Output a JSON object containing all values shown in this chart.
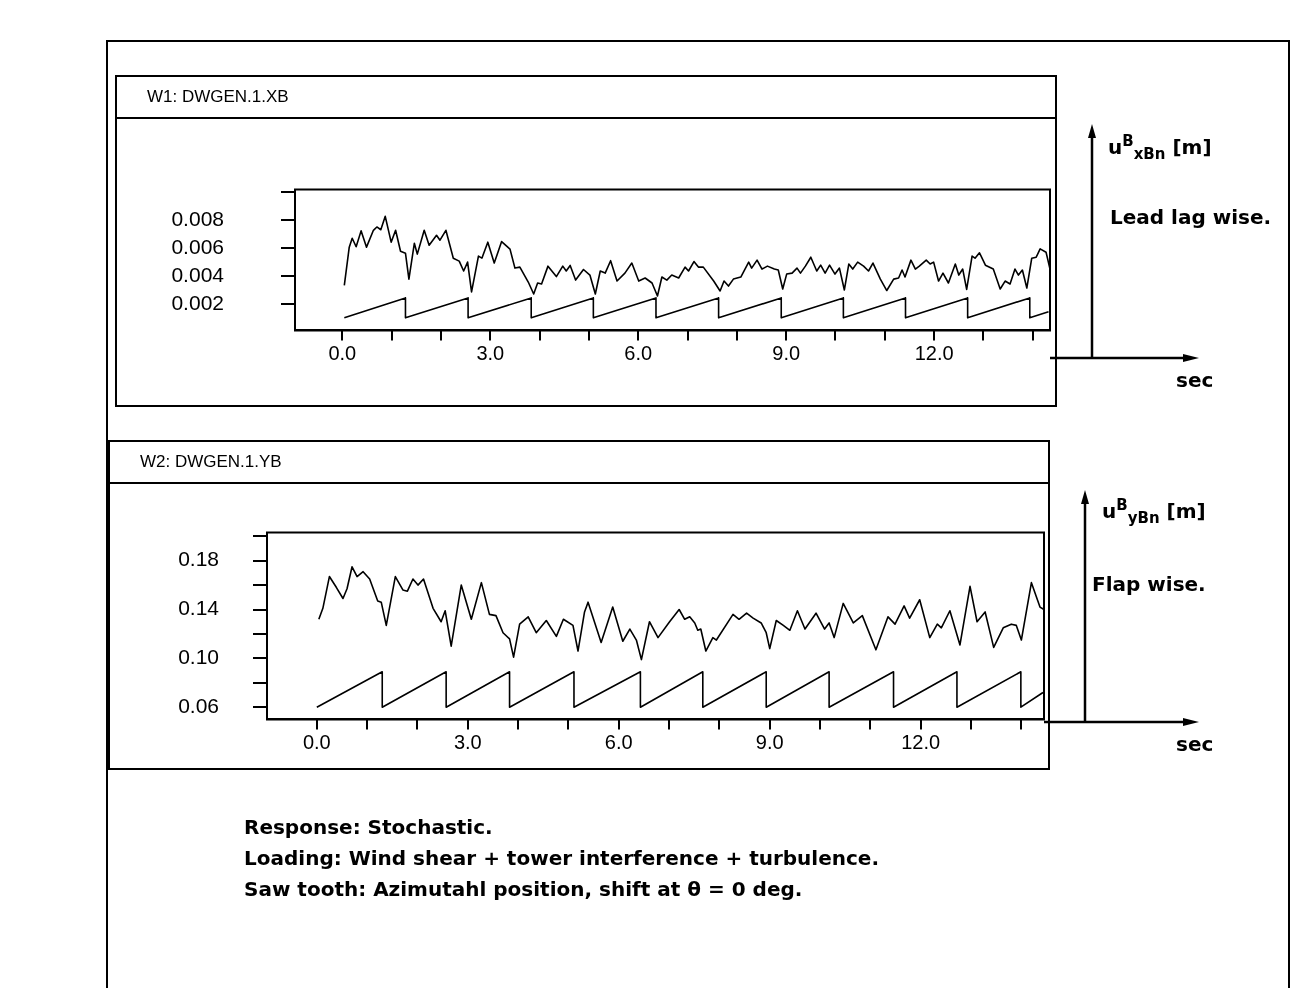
{
  "chart_data": [
    {
      "type": "line",
      "title": "W1: DWGEN.1.XB",
      "ylabel": "u$^{B}$$_{xBn}$ [m]",
      "annotations": [
        "Lead lag wise.",
        "sec"
      ],
      "xlim": [
        -0.96,
        14.35
      ],
      "xticks": [
        {
          "value": 0,
          "label": "0.0"
        },
        {
          "value": 1,
          "label": null
        },
        {
          "value": 2,
          "label": null
        },
        {
          "value": 3,
          "label": "3.0"
        },
        {
          "value": 4,
          "label": null
        },
        {
          "value": 5,
          "label": null
        },
        {
          "value": 6,
          "label": "6.0"
        },
        {
          "value": 7,
          "label": null
        },
        {
          "value": 8,
          "label": null
        },
        {
          "value": 9,
          "label": "9.0"
        },
        {
          "value": 10,
          "label": null
        },
        {
          "value": 11,
          "label": null
        },
        {
          "value": 12,
          "label": "12.0"
        },
        {
          "value": 13,
          "label": null
        },
        {
          "value": 14,
          "label": null
        }
      ],
      "ylim": [
        0.0001,
        0.0102
      ],
      "yticks": [
        0.002,
        0.004,
        0.006,
        0.008,
        {
          "value": 0.01,
          "label": null
        }
      ],
      "grid": false,
      "legend": false,
      "series": [
        {
          "color": "#000000",
          "x": [
            0.04,
            0.14,
            0.2,
            0.28,
            0.38,
            0.49,
            0.63,
            0.7,
            0.78,
            0.87,
            0.99,
            1.08,
            1.18,
            1.28,
            1.35,
            1.46,
            1.52,
            1.66,
            1.76,
            1.91,
            1.98,
            2.1,
            2.25,
            2.37,
            2.46,
            2.54,
            2.62,
            2.76,
            2.83,
            2.95,
            3.08,
            3.23,
            3.4,
            3.5,
            3.6,
            3.77,
            3.88,
            3.96,
            4.04,
            4.17,
            4.34,
            4.47,
            4.54,
            4.62,
            4.73,
            4.89,
            5.02,
            5.13,
            5.23,
            5.33,
            5.44,
            5.57,
            5.73,
            5.87,
            6.01,
            6.14,
            6.28,
            6.39,
            6.48,
            6.58,
            6.68,
            6.82,
            6.95,
            7.02,
            7.13,
            7.22,
            7.32,
            7.53,
            7.66,
            7.74,
            7.83,
            7.93,
            8.08,
            8.24,
            8.3,
            8.41,
            8.51,
            8.62,
            8.76,
            8.84,
            8.93,
            9.01,
            9.12,
            9.22,
            9.29,
            9.39,
            9.5,
            9.62,
            9.7,
            9.79,
            9.88,
            9.99,
            10.08,
            10.18,
            10.27,
            10.35,
            10.45,
            10.57,
            10.67,
            10.76,
            10.91,
            11.04,
            11.18,
            11.28,
            11.35,
            11.41,
            11.53,
            11.62,
            11.7,
            11.84,
            11.92,
            11.99,
            12.09,
            12.18,
            12.29,
            12.43,
            12.5,
            12.58,
            12.66,
            12.77,
            12.83,
            12.92,
            13.04,
            13.2,
            13.34,
            13.44,
            13.54,
            13.64,
            13.71,
            13.79,
            13.88,
            13.98,
            14.07,
            14.15,
            14.27,
            14.35
          ],
          "values": [
            0.00333,
            0.00607,
            0.00671,
            0.0061,
            0.00724,
            0.00607,
            0.00728,
            0.00752,
            0.00732,
            0.00828,
            0.00643,
            0.00728,
            0.00578,
            0.00564,
            0.00378,
            0.00635,
            0.00557,
            0.00728,
            0.00621,
            0.00692,
            0.00657,
            0.00728,
            0.00528,
            0.00507,
            0.00436,
            0.005,
            0.00286,
            0.00543,
            0.00528,
            0.00643,
            0.00493,
            0.00647,
            0.00593,
            0.00457,
            0.00464,
            0.00357,
            0.00271,
            0.0035,
            0.00343,
            0.00471,
            0.00396,
            0.00471,
            0.00436,
            0.00476,
            0.00371,
            0.00447,
            0.00407,
            0.00271,
            0.00436,
            0.00421,
            0.0051,
            0.00364,
            0.00421,
            0.00493,
            0.00364,
            0.00386,
            0.0035,
            0.00257,
            0.00393,
            0.00371,
            0.00407,
            0.00386,
            0.00464,
            0.00436,
            0.00504,
            0.00464,
            0.00464,
            0.00364,
            0.00293,
            0.00364,
            0.00328,
            0.00378,
            0.00393,
            0.005,
            0.00457,
            0.00514,
            0.0045,
            0.00471,
            0.0045,
            0.00443,
            0.00307,
            0.00414,
            0.00421,
            0.00457,
            0.00421,
            0.00471,
            0.00535,
            0.00436,
            0.00478,
            0.00421,
            0.00478,
            0.00414,
            0.00457,
            0.003,
            0.00486,
            0.0045,
            0.005,
            0.00471,
            0.00436,
            0.00493,
            0.00378,
            0.00296,
            0.00378,
            0.00386,
            0.00443,
            0.00393,
            0.00514,
            0.0045,
            0.00471,
            0.00514,
            0.00486,
            0.005,
            0.00364,
            0.00421,
            0.0035,
            0.00486,
            0.00407,
            0.0045,
            0.00304,
            0.00543,
            0.00528,
            0.00567,
            0.00478,
            0.0045,
            0.00307,
            0.00364,
            0.00343,
            0.0045,
            0.00407,
            0.00443,
            0.00314,
            0.00528,
            0.00535,
            0.00595,
            0.00571,
            0.0045
          ]
        },
        {
          "color": "#000000",
          "x": [
            0.04,
            1.28,
            1.28,
            2.55,
            2.55,
            3.83,
            3.83,
            5.09,
            5.09,
            6.36,
            6.36,
            7.63,
            7.63,
            8.9,
            8.9,
            10.16,
            10.16,
            11.42,
            11.42,
            12.68,
            12.68,
            13.94,
            13.94,
            14.32
          ],
          "values": [
            0.001,
            0.00243,
            0.001,
            0.00243,
            0.001,
            0.00243,
            0.001,
            0.00243,
            0.001,
            0.00243,
            0.001,
            0.00243,
            0.001,
            0.00243,
            0.001,
            0.00243,
            0.001,
            0.00243,
            0.001,
            0.00243,
            0.001,
            0.00243,
            0.001,
            0.00144
          ]
        }
      ]
    },
    {
      "type": "line",
      "title": "W2: DWGEN.1.YB",
      "ylabel": "u$^{B}$$_{yBn}$ [m]",
      "annotations": [
        "Flap wise.",
        "sec",
        "Response: Stochastic.",
        "Loading: Wind shear + tower interference + turbulence.",
        "Saw tooth: Azimutahl position, shift at θ = 0 deg."
      ],
      "xlim": [
        -0.99,
        14.45
      ],
      "xticks": [
        {
          "value": 0,
          "label": "0.0"
        },
        {
          "value": 1,
          "label": null
        },
        {
          "value": 2,
          "label": null
        },
        {
          "value": 3,
          "label": "3.0"
        },
        {
          "value": 4,
          "label": null
        },
        {
          "value": 5,
          "label": null
        },
        {
          "value": 6,
          "label": "6.0"
        },
        {
          "value": 7,
          "label": null
        },
        {
          "value": 8,
          "label": null
        },
        {
          "value": 9,
          "label": "9.0"
        },
        {
          "value": 10,
          "label": null
        },
        {
          "value": 11,
          "label": null
        },
        {
          "value": 12,
          "label": "12.0"
        },
        {
          "value": 13,
          "label": null
        },
        {
          "value": 14,
          "label": null
        }
      ],
      "ylim": [
        0.05,
        0.203
      ],
      "yticks": [
        0.06,
        {
          "value": 0.08,
          "label": null
        },
        {
          "value": 0.1,
          "label": "0.10"
        },
        {
          "value": 0.12,
          "label": null
        },
        0.14,
        {
          "value": 0.16,
          "label": null
        },
        0.18,
        {
          "value": 0.2,
          "label": null
        }
      ],
      "grid": false,
      "legend": false,
      "series": [
        {
          "color": "#000000",
          "x": [
            0.04,
            0.12,
            0.25,
            0.39,
            0.52,
            0.6,
            0.7,
            0.8,
            0.92,
            1.05,
            1.21,
            1.28,
            1.38,
            1.56,
            1.71,
            1.8,
            1.91,
            2.01,
            2.12,
            2.31,
            2.47,
            2.55,
            2.67,
            2.87,
            3.07,
            3.27,
            3.43,
            3.56,
            3.7,
            3.83,
            3.91,
            4.03,
            4.2,
            4.36,
            4.56,
            4.76,
            4.9,
            5.09,
            5.19,
            5.32,
            5.39,
            5.65,
            5.88,
            6.08,
            6.22,
            6.35,
            6.45,
            6.61,
            6.78,
            7.01,
            7.2,
            7.31,
            7.41,
            7.51,
            7.57,
            7.63,
            7.73,
            7.87,
            7.94,
            8.27,
            8.39,
            8.54,
            8.67,
            8.83,
            8.93,
            9.0,
            9.13,
            9.27,
            9.4,
            9.55,
            9.7,
            9.92,
            10.09,
            10.18,
            10.28,
            10.46,
            10.66,
            10.84,
            11.11,
            11.35,
            11.49,
            11.67,
            11.78,
            11.98,
            12.18,
            12.33,
            12.41,
            12.58,
            12.78,
            12.98,
            13.12,
            13.28,
            13.45,
            13.64,
            13.8,
            13.9,
            14.0,
            14.2,
            14.37,
            14.45
          ],
          "values": [
            0.132,
            0.141,
            0.167,
            0.158,
            0.149,
            0.157,
            0.175,
            0.167,
            0.171,
            0.165,
            0.147,
            0.146,
            0.127,
            0.167,
            0.156,
            0.155,
            0.165,
            0.16,
            0.165,
            0.141,
            0.13,
            0.139,
            0.11,
            0.16,
            0.132,
            0.162,
            0.136,
            0.135,
            0.121,
            0.116,
            0.101,
            0.128,
            0.134,
            0.121,
            0.131,
            0.118,
            0.132,
            0.127,
            0.106,
            0.138,
            0.146,
            0.113,
            0.142,
            0.114,
            0.124,
            0.115,
            0.099,
            0.13,
            0.117,
            0.13,
            0.14,
            0.132,
            0.134,
            0.129,
            0.123,
            0.124,
            0.106,
            0.117,
            0.115,
            0.136,
            0.132,
            0.137,
            0.133,
            0.129,
            0.121,
            0.108,
            0.131,
            0.127,
            0.123,
            0.139,
            0.124,
            0.137,
            0.124,
            0.129,
            0.117,
            0.145,
            0.129,
            0.135,
            0.107,
            0.134,
            0.128,
            0.143,
            0.133,
            0.148,
            0.117,
            0.128,
            0.125,
            0.139,
            0.111,
            0.159,
            0.13,
            0.138,
            0.109,
            0.125,
            0.128,
            0.127,
            0.115,
            0.162,
            0.142,
            0.14
          ]
        },
        {
          "color": "#000000",
          "x": [
            0.0,
            1.3,
            1.3,
            2.57,
            2.57,
            3.83,
            3.83,
            5.11,
            5.11,
            6.43,
            6.43,
            7.67,
            7.67,
            8.93,
            8.93,
            10.18,
            10.18,
            11.46,
            11.46,
            12.72,
            12.72,
            13.99,
            13.99,
            14.43
          ],
          "values": [
            0.06,
            0.089,
            0.06,
            0.089,
            0.06,
            0.089,
            0.06,
            0.089,
            0.06,
            0.089,
            0.06,
            0.089,
            0.06,
            0.089,
            0.06,
            0.089,
            0.06,
            0.089,
            0.06,
            0.089,
            0.06,
            0.089,
            0.06,
            0.072
          ]
        }
      ]
    }
  ]
}
